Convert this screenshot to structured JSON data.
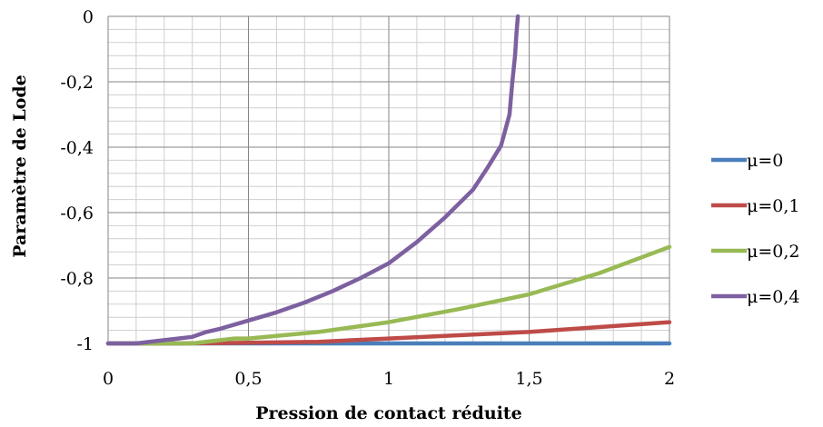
{
  "chart_data": {
    "type": "line",
    "title": "",
    "xlabel": "Pression de contact réduite",
    "ylabel": "Paramètre de Lode",
    "xlim": [
      0,
      2
    ],
    "ylim": [
      -1,
      0
    ],
    "x_ticks": [
      "0",
      "0,5",
      "1",
      "1,5",
      "2"
    ],
    "y_ticks": [
      "0",
      "-0,2",
      "-0,4",
      "-0,6",
      "-0,8",
      "-1"
    ],
    "x_tick_values": [
      0,
      0.5,
      1,
      1.5,
      2
    ],
    "y_tick_values": [
      0,
      -0.2,
      -0.4,
      -0.6,
      -0.8,
      -1
    ],
    "grid": true,
    "legend_position": "right",
    "series": [
      {
        "name": "μ=0",
        "color": "#4a7ebb",
        "x": [
          0,
          0.5,
          1,
          1.5,
          2
        ],
        "y": [
          -1,
          -1,
          -1,
          -1,
          -1
        ]
      },
      {
        "name": "μ=0,1",
        "color": "#be4b48",
        "x": [
          0,
          0.25,
          0.5,
          0.75,
          1,
          1.25,
          1.5,
          1.75,
          2
        ],
        "y": [
          -1,
          -1,
          -0.998,
          -0.995,
          -0.985,
          -0.975,
          -0.965,
          -0.95,
          -0.935
        ]
      },
      {
        "name": "μ=0,2",
        "color": "#98b954",
        "x": [
          0,
          0.2,
          0.3,
          0.4,
          0.45,
          0.5,
          0.75,
          1,
          1.25,
          1.5,
          1.75,
          2
        ],
        "y": [
          -1,
          -1,
          -1,
          -0.99,
          -0.985,
          -0.985,
          -0.965,
          -0.935,
          -0.895,
          -0.85,
          -0.785,
          -0.705
        ]
      },
      {
        "name": "μ=0,4",
        "color": "#7d60a0",
        "x": [
          0,
          0.1,
          0.2,
          0.25,
          0.3,
          0.35,
          0.4,
          0.5,
          0.6,
          0.7,
          0.8,
          0.9,
          1,
          1.1,
          1.2,
          1.3,
          1.35,
          1.4,
          1.43,
          1.44,
          1.45,
          1.455,
          1.46
        ],
        "y": [
          -1,
          -1,
          -0.99,
          -0.985,
          -0.98,
          -0.965,
          -0.955,
          -0.93,
          -0.905,
          -0.875,
          -0.84,
          -0.8,
          -0.755,
          -0.69,
          -0.615,
          -0.53,
          -0.465,
          -0.395,
          -0.3,
          -0.2,
          -0.12,
          -0.05,
          0
        ]
      }
    ]
  }
}
